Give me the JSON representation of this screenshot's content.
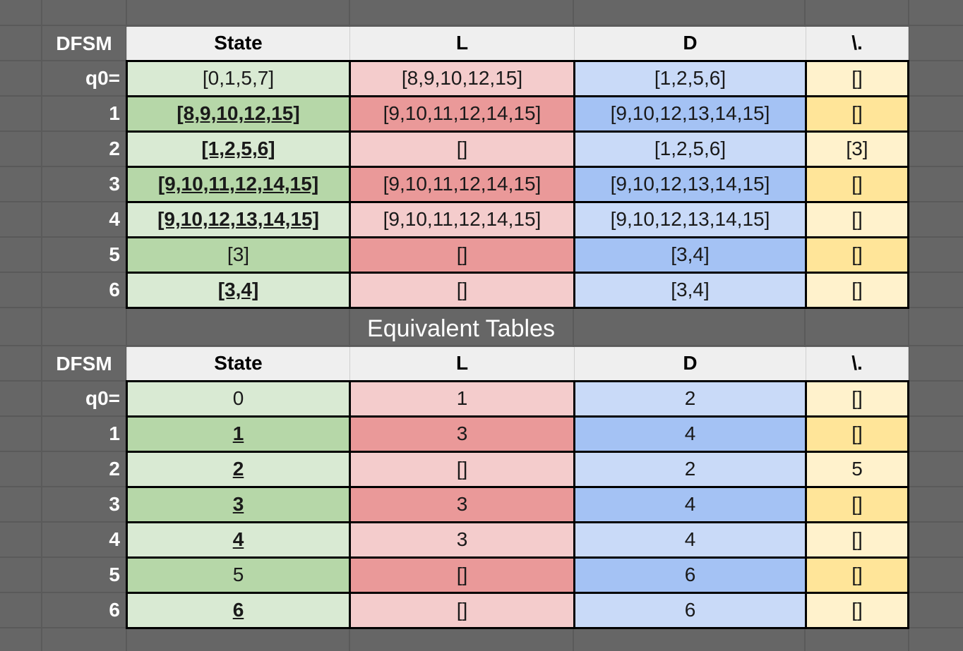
{
  "caption": "Equivalent Tables",
  "headers": {
    "corner": "DFSM",
    "state": "State",
    "l": "L",
    "d": "D",
    "dot": "\\."
  },
  "table1": {
    "rows": [
      {
        "label": "q0=",
        "state": "[0,1,5,7]",
        "state_underline": false,
        "l": "[8,9,10,12,15]",
        "d": "[1,2,5,6]",
        "dot": "[]",
        "shade": "light"
      },
      {
        "label": "1",
        "state": "[8,9,10,12,15]",
        "state_underline": true,
        "l": "[9,10,11,12,14,15]",
        "d": "[9,10,12,13,14,15]",
        "dot": "[]",
        "shade": "dark"
      },
      {
        "label": "2",
        "state": "[1,2,5,6]",
        "state_underline": true,
        "l": "[]",
        "d": "[1,2,5,6]",
        "dot": "[3]",
        "shade": "light"
      },
      {
        "label": "3",
        "state": "[9,10,11,12,14,15]",
        "state_underline": true,
        "l": "[9,10,11,12,14,15]",
        "d": "[9,10,12,13,14,15]",
        "dot": "[]",
        "shade": "dark"
      },
      {
        "label": "4",
        "state": "[9,10,12,13,14,15]",
        "state_underline": true,
        "l": "[9,10,11,12,14,15]",
        "d": "[9,10,12,13,14,15]",
        "dot": "[]",
        "shade": "light"
      },
      {
        "label": "5",
        "state": "[3]",
        "state_underline": false,
        "l": "[]",
        "d": "[3,4]",
        "dot": "[]",
        "shade": "dark"
      },
      {
        "label": "6",
        "state": "[3,4]",
        "state_underline": true,
        "l": "[]",
        "d": "[3,4]",
        "dot": "[]",
        "shade": "light"
      }
    ]
  },
  "table2": {
    "rows": [
      {
        "label": "q0=",
        "state": "0",
        "state_underline": false,
        "l": "1",
        "d": "2",
        "dot": "[]",
        "shade": "light"
      },
      {
        "label": "1",
        "state": "1",
        "state_underline": true,
        "l": "3",
        "d": "4",
        "dot": "[]",
        "shade": "dark"
      },
      {
        "label": "2",
        "state": "2",
        "state_underline": true,
        "l": "[]",
        "d": "2",
        "dot": "5",
        "shade": "light"
      },
      {
        "label": "3",
        "state": "3",
        "state_underline": true,
        "l": "3",
        "d": "4",
        "dot": "[]",
        "shade": "dark"
      },
      {
        "label": "4",
        "state": "4",
        "state_underline": true,
        "l": "3",
        "d": "4",
        "dot": "[]",
        "shade": "light"
      },
      {
        "label": "5",
        "state": "5",
        "state_underline": false,
        "l": "[]",
        "d": "6",
        "dot": "[]",
        "shade": "dark"
      },
      {
        "label": "6",
        "state": "6",
        "state_underline": true,
        "l": "[]",
        "d": "6",
        "dot": "[]",
        "shade": "light"
      }
    ]
  },
  "colors": {
    "background": "#666666",
    "header": "#efefef",
    "state_light": "#d9ead3",
    "state_dark": "#b6d7a8",
    "l_light": "#f4cccc",
    "l_dark": "#ea9999",
    "d_light": "#c9daf8",
    "d_dark": "#a4c2f4",
    "dot_light": "#fff2cc",
    "dot_dark": "#ffe599"
  }
}
